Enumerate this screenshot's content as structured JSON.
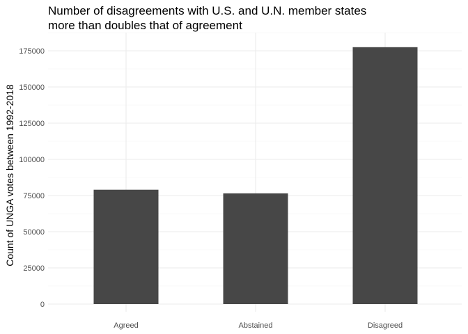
{
  "chart_data": {
    "type": "bar",
    "title_lines": [
      "Number of disagreements with U.S. and U.N. member states",
      "more than doubles that of agreement"
    ],
    "xlabel": "",
    "ylabel": "Count of UNGA votes between 1992-2018",
    "categories": [
      "Agreed",
      "Abstained",
      "Disagreed"
    ],
    "values": [
      79000,
      76500,
      177500
    ],
    "yticks": [
      0,
      25000,
      50000,
      75000,
      100000,
      125000,
      150000,
      175000
    ],
    "ylim": [
      0,
      177500
    ],
    "bar_color": "#474747",
    "grid": true,
    "legend": "none"
  }
}
